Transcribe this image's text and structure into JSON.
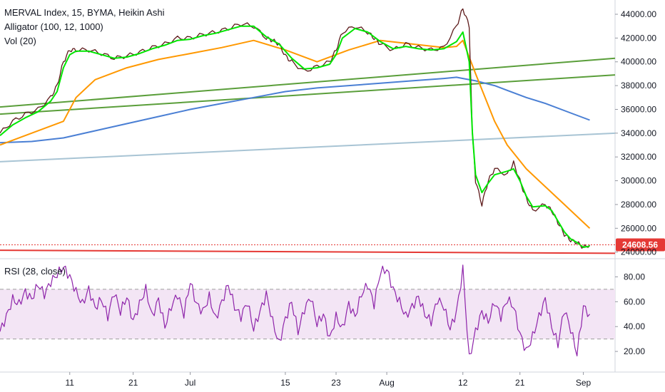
{
  "chart_data": [
    {
      "type": "line",
      "legend": {
        "title": "MERVAL Index, 15, BYMA, Heikin Ashi",
        "indicator_1": "Alligator (100, 12, 1000)",
        "indicator_2": "Vol (20)"
      },
      "x_ticks": [
        "11",
        "21",
        "Jul",
        "15",
        "23",
        "Aug",
        "12",
        "21",
        "Sep"
      ],
      "x_tick_t": [
        11,
        21,
        30,
        45,
        53,
        61,
        73,
        82,
        92
      ],
      "y_ticks": [
        "44000.00",
        "42000.00",
        "40000.00",
        "38000.00",
        "36000.00",
        "34000.00",
        "32000.00",
        "30000.00",
        "28000.00",
        "26000.00",
        "24000.00"
      ],
      "ylim": [
        23500,
        45200
      ],
      "last_price": "24608.56",
      "last_price_value": 24608.56,
      "colors": {
        "price": "#5d1a1a",
        "lips": "#00e600",
        "teeth": "#ff9800",
        "jaw": "#4a7fd4",
        "trendline_green": "#5a9e3a",
        "trendline_blue": "#a8c4d4",
        "support": "#e53935",
        "last_price": "#e53935"
      },
      "series": [
        {
          "key": "price",
          "x": [
            0,
            2,
            4,
            6,
            8,
            9,
            10,
            11,
            12,
            14,
            16,
            18,
            20,
            22,
            24,
            26,
            28,
            30,
            32,
            34,
            36,
            38,
            40,
            42,
            43,
            44,
            45,
            46,
            48,
            50,
            52,
            53,
            54,
            56,
            58,
            59,
            60,
            62,
            64,
            66,
            68,
            70,
            72,
            73,
            74,
            74.5,
            75,
            76,
            77,
            78,
            80,
            81,
            82,
            83,
            84,
            86,
            87,
            88,
            89,
            90,
            91,
            92,
            93
          ],
          "y": [
            34000,
            35000,
            35600,
            36000,
            37000,
            38000,
            40000,
            41000,
            41000,
            41000,
            40700,
            40300,
            40500,
            40800,
            41200,
            41500,
            42000,
            42000,
            42300,
            42500,
            42800,
            43200,
            43000,
            42000,
            41800,
            41500,
            40500,
            40000,
            39200,
            39600,
            40000,
            41000,
            42500,
            43000,
            42500,
            42000,
            41500,
            41000,
            41500,
            41200,
            41000,
            41200,
            43000,
            44500,
            43000,
            34000,
            30000,
            28000,
            30000,
            31000,
            30500,
            31500,
            30000,
            28500,
            27500,
            28000,
            27500,
            26500,
            25500,
            25000,
            24800,
            24400,
            24600
          ]
        },
        {
          "key": "lips",
          "x": [
            0,
            2,
            4,
            6,
            8,
            9,
            10,
            11,
            12,
            14,
            16,
            18,
            20,
            22,
            24,
            26,
            28,
            30,
            32,
            34,
            36,
            38,
            40,
            42,
            44,
            46,
            48,
            50,
            52,
            53,
            54,
            56,
            58,
            60,
            62,
            64,
            66,
            68,
            70,
            72,
            73,
            74,
            74.5,
            75,
            76,
            77,
            78,
            80,
            81,
            82,
            83,
            84,
            86,
            87,
            88,
            89,
            90,
            91,
            92,
            93
          ],
          "y": [
            33800,
            34700,
            35300,
            35800,
            36700,
            37500,
            39500,
            40600,
            40900,
            40900,
            40600,
            40300,
            40400,
            40700,
            41100,
            41400,
            41800,
            41900,
            42200,
            42400,
            42700,
            43000,
            43000,
            42100,
            41500,
            40300,
            39400,
            39500,
            39800,
            40600,
            42000,
            42800,
            42500,
            41700,
            41100,
            41300,
            41100,
            41000,
            41100,
            41700,
            42500,
            40000,
            34000,
            30500,
            29000,
            29800,
            30500,
            30800,
            31000,
            30000,
            28700,
            27800,
            27900,
            27500,
            26600,
            25700,
            25100,
            24800,
            24400,
            24500
          ]
        },
        {
          "key": "teeth",
          "x": [
            0,
            5,
            10,
            12,
            15,
            20,
            25,
            30,
            35,
            40,
            45,
            50,
            55,
            60,
            65,
            70,
            72,
            73,
            75,
            78,
            80,
            83,
            86,
            89,
            92,
            93
          ],
          "y": [
            33000,
            34000,
            35000,
            37000,
            38500,
            39500,
            40200,
            40700,
            41200,
            41800,
            41000,
            40000,
            41000,
            41800,
            41500,
            41200,
            41300,
            41800,
            39000,
            35000,
            33000,
            31000,
            29500,
            28000,
            26500,
            26000
          ]
        },
        {
          "key": "jaw",
          "x": [
            0,
            5,
            10,
            15,
            20,
            25,
            30,
            35,
            40,
            45,
            50,
            55,
            60,
            65,
            70,
            72,
            73,
            75,
            78,
            80,
            83,
            86,
            90,
            93
          ],
          "y": [
            33200,
            33300,
            33600,
            34200,
            34800,
            35400,
            36000,
            36500,
            37000,
            37500,
            37800,
            38000,
            38200,
            38400,
            38600,
            38700,
            38600,
            38400,
            38000,
            37600,
            37000,
            36500,
            35700,
            35100
          ]
        }
      ],
      "trendlines": [
        {
          "key": "trendline_green",
          "x": [
            0,
            97
          ],
          "y": [
            36200,
            40300
          ]
        },
        {
          "key": "trendline_green",
          "x": [
            0,
            97
          ],
          "y": [
            35600,
            38900
          ]
        },
        {
          "key": "trendline_blue",
          "x": [
            0,
            97
          ],
          "y": [
            31600,
            34000
          ]
        },
        {
          "key": "support",
          "x": [
            0,
            97
          ],
          "y": [
            24150,
            23900
          ]
        }
      ]
    },
    {
      "type": "line",
      "legend": {
        "title": "RSI (28, close)"
      },
      "y_ticks": [
        "80.00",
        "60.00",
        "40.00",
        "20.00"
      ],
      "ylim": [
        4,
        94
      ],
      "band": [
        30,
        70
      ],
      "colors": {
        "rsi": "#8e24aa",
        "band_fill": "#f3e5f5",
        "band_line": "#9e9e9e"
      },
      "series": [
        {
          "key": "rsi",
          "x": [
            0,
            1,
            2,
            3,
            4,
            5,
            6,
            7,
            8,
            9,
            10,
            11,
            12,
            13,
            14,
            15,
            16,
            17,
            18,
            19,
            20,
            21,
            22,
            23,
            24,
            25,
            26,
            27,
            28,
            29,
            30,
            31,
            32,
            33,
            34,
            35,
            36,
            37,
            38,
            39,
            40,
            41,
            42,
            43,
            44,
            45,
            46,
            47,
            48,
            49,
            50,
            51,
            52,
            53,
            54,
            55,
            56,
            57,
            58,
            59,
            60,
            61,
            62,
            63,
            64,
            65,
            66,
            67,
            68,
            69,
            70,
            71,
            72,
            73,
            74,
            75,
            76,
            77,
            78,
            79,
            80,
            81,
            82,
            83,
            84,
            85,
            86,
            87,
            88,
            89,
            90,
            91,
            92,
            93
          ],
          "y": [
            36,
            48,
            62,
            58,
            68,
            62,
            74,
            66,
            76,
            82,
            88,
            80,
            68,
            58,
            70,
            55,
            62,
            48,
            68,
            52,
            64,
            44,
            58,
            70,
            48,
            62,
            40,
            56,
            66,
            50,
            76,
            58,
            52,
            64,
            46,
            60,
            74,
            56,
            48,
            60,
            38,
            52,
            66,
            44,
            26,
            46,
            60,
            36,
            54,
            64,
            42,
            50,
            30,
            48,
            38,
            58,
            48,
            66,
            74,
            58,
            84,
            86,
            70,
            60,
            48,
            56,
            64,
            50,
            44,
            62,
            56,
            38,
            52,
            86,
            14,
            36,
            52,
            44,
            60,
            48,
            62,
            56,
            34,
            20,
            32,
            48,
            62,
            40,
            26,
            54,
            38,
            18,
            56,
            50
          ]
        }
      ]
    }
  ]
}
